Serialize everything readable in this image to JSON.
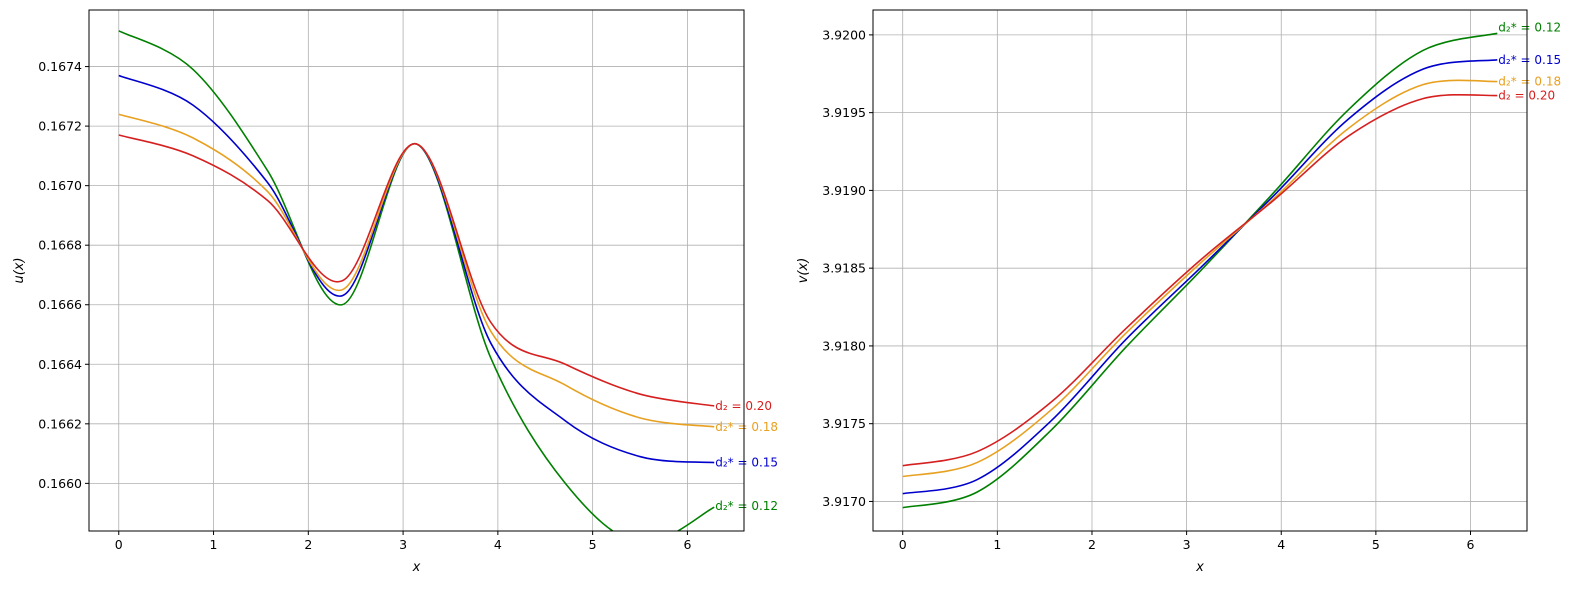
{
  "chart_data": [
    {
      "type": "line",
      "xlabel": "x",
      "ylabel": "u(x)",
      "xlim": [
        -0.314,
        6.597
      ],
      "ylim": [
        0.16584,
        0.16759
      ],
      "xticks": [
        0,
        1,
        2,
        3,
        4,
        5,
        6
      ],
      "xtick_labels": [
        "0",
        "1",
        "2",
        "3",
        "4",
        "5",
        "6"
      ],
      "yticks": [
        0.166,
        0.1662,
        0.1664,
        0.1666,
        0.1668,
        0.167,
        0.1672,
        0.1674
      ],
      "ytick_labels": [
        "0.1660",
        "0.1662",
        "0.1664",
        "0.1666",
        "0.1668",
        "0.1670",
        "0.1672",
        "0.1674"
      ],
      "grid": true,
      "legend": "inline labels at curve ends",
      "series": [
        {
          "name": "d₂* = 0.12",
          "color": "#008000",
          "x": [
            0,
            0.785,
            1.571,
            2.356,
            3.142,
            3.927,
            4.712,
            5.498,
            6.283
          ],
          "y": [
            0.16752,
            0.16739,
            0.16705,
            0.1666,
            0.16714,
            0.16642,
            0.166,
            0.1658,
            0.16592
          ]
        },
        {
          "name": "d₂* = 0.15",
          "color": "#0000cc",
          "x": [
            0,
            0.785,
            1.571,
            2.356,
            3.142,
            3.927,
            4.712,
            5.498,
            6.283
          ],
          "y": [
            0.16737,
            0.16727,
            0.16701,
            0.16663,
            0.16714,
            0.16647,
            0.16621,
            0.16609,
            0.16607
          ]
        },
        {
          "name": "d₂* = 0.18",
          "color": "#e8a020",
          "x": [
            0,
            0.785,
            1.571,
            2.356,
            3.142,
            3.927,
            4.712,
            5.498,
            6.283
          ],
          "y": [
            0.16724,
            0.16716,
            0.16698,
            0.16665,
            0.16714,
            0.16651,
            0.16633,
            0.16622,
            0.16619
          ]
        },
        {
          "name": "d₂ = 0.20",
          "color": "#d62020",
          "x": [
            0,
            0.785,
            1.571,
            2.356,
            3.142,
            3.927,
            4.712,
            5.498,
            6.283
          ],
          "y": [
            0.16717,
            0.1671,
            0.16695,
            0.16668,
            0.16714,
            0.16654,
            0.1664,
            0.1663,
            0.16626
          ]
        }
      ]
    },
    {
      "type": "line",
      "xlabel": "x",
      "ylabel": "v(x)",
      "xlim": [
        -0.314,
        6.597
      ],
      "ylim": [
        3.91681,
        3.92016
      ],
      "xticks": [
        0,
        1,
        2,
        3,
        4,
        5,
        6
      ],
      "xtick_labels": [
        "0",
        "1",
        "2",
        "3",
        "4",
        "5",
        "6"
      ],
      "yticks": [
        3.917,
        3.9175,
        3.918,
        3.9185,
        3.919,
        3.9195,
        3.92
      ],
      "ytick_labels": [
        "3.9170",
        "3.9175",
        "3.9180",
        "3.9185",
        "3.9190",
        "3.9195",
        "3.9200"
      ],
      "grid": true,
      "legend": "inline labels at curve ends",
      "series": [
        {
          "name": "d₂* = 0.12",
          "color": "#008000",
          "x": [
            0,
            0.785,
            1.571,
            2.356,
            3.142,
            3.927,
            4.712,
            5.498,
            6.283
          ],
          "y": [
            3.91696,
            3.91706,
            3.91746,
            3.91799,
            3.91848,
            3.91899,
            3.91952,
            3.9199,
            3.92001
          ]
        },
        {
          "name": "d₂* = 0.15",
          "color": "#0000cc",
          "x": [
            0,
            0.785,
            1.571,
            2.356,
            3.142,
            3.927,
            4.712,
            5.498,
            6.283
          ],
          "y": [
            3.91705,
            3.91714,
            3.91752,
            3.91804,
            3.9185,
            3.91897,
            3.91946,
            3.91978,
            3.91984
          ]
        },
        {
          "name": "d₂* = 0.18",
          "color": "#e8a020",
          "x": [
            0,
            0.785,
            1.571,
            2.356,
            3.142,
            3.927,
            4.712,
            5.498,
            6.283
          ],
          "y": [
            3.91716,
            3.91725,
            3.91759,
            3.91808,
            3.91853,
            3.91895,
            3.9194,
            3.91968,
            3.9197
          ]
        },
        {
          "name": "d₂ = 0.20",
          "color": "#d62020",
          "x": [
            0,
            0.785,
            1.571,
            2.356,
            3.142,
            3.927,
            4.712,
            5.498,
            6.283
          ],
          "y": [
            3.91723,
            3.91732,
            3.91764,
            3.91811,
            3.91855,
            3.91894,
            3.91935,
            3.91959,
            3.91961
          ]
        }
      ]
    }
  ]
}
